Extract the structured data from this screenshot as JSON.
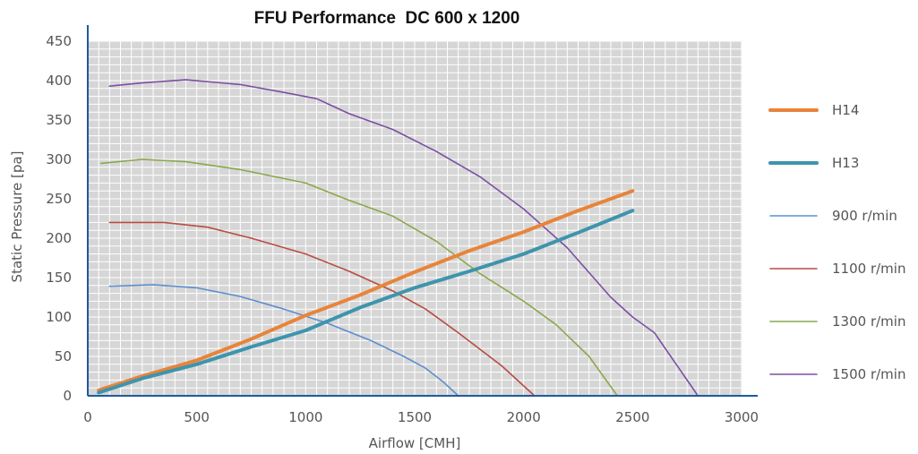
{
  "chart_data": {
    "type": "line",
    "title": "FFU Performance  DC 600 x 1200",
    "xlabel": "Airflow [CMH]",
    "ylabel": "Static Pressure [pa]",
    "xlim": [
      0,
      3000
    ],
    "ylim": [
      0,
      450
    ],
    "xticks": [
      "0",
      "500",
      "1000",
      "1500",
      "2000",
      "2500",
      "3000"
    ],
    "yticks": [
      "0",
      "50",
      "100",
      "150",
      "200",
      "250",
      "300",
      "350",
      "400",
      "450"
    ],
    "grid": true,
    "legend_position": "right",
    "series": [
      {
        "name": "H14",
        "color": "#e8843a",
        "width": "thick",
        "points": [
          [
            50,
            7
          ],
          [
            250,
            25
          ],
          [
            500,
            45
          ],
          [
            750,
            72
          ],
          [
            1000,
            102
          ],
          [
            1250,
            128
          ],
          [
            1500,
            157
          ],
          [
            1750,
            184
          ],
          [
            2000,
            208
          ],
          [
            2250,
            235
          ],
          [
            2500,
            260
          ]
        ]
      },
      {
        "name": "H13",
        "color": "#3e94ad",
        "width": "thick",
        "points": [
          [
            50,
            4
          ],
          [
            250,
            22
          ],
          [
            500,
            40
          ],
          [
            750,
            62
          ],
          [
            1000,
            83
          ],
          [
            1250,
            112
          ],
          [
            1500,
            137
          ],
          [
            1750,
            158
          ],
          [
            2000,
            180
          ],
          [
            2250,
            207
          ],
          [
            2500,
            235
          ]
        ]
      },
      {
        "name": "900 r/min",
        "color": "#5b8fcf",
        "width": "thin",
        "points": [
          [
            100,
            139
          ],
          [
            300,
            141
          ],
          [
            500,
            137
          ],
          [
            700,
            126
          ],
          [
            900,
            110
          ],
          [
            1100,
            92
          ],
          [
            1300,
            70
          ],
          [
            1450,
            50
          ],
          [
            1550,
            35
          ],
          [
            1630,
            18
          ],
          [
            1700,
            0
          ]
        ]
      },
      {
        "name": "1100 r/min",
        "color": "#b84d42",
        "width": "thin",
        "points": [
          [
            100,
            220
          ],
          [
            350,
            220
          ],
          [
            550,
            214
          ],
          [
            750,
            200
          ],
          [
            1000,
            180
          ],
          [
            1200,
            158
          ],
          [
            1400,
            133
          ],
          [
            1550,
            110
          ],
          [
            1700,
            80
          ],
          [
            1900,
            38
          ],
          [
            2050,
            0
          ]
        ]
      },
      {
        "name": "1300 r/min",
        "color": "#8aa84b",
        "width": "thin",
        "points": [
          [
            60,
            295
          ],
          [
            250,
            300
          ],
          [
            450,
            297
          ],
          [
            700,
            287
          ],
          [
            1000,
            270
          ],
          [
            1200,
            248
          ],
          [
            1400,
            228
          ],
          [
            1600,
            196
          ],
          [
            1800,
            155
          ],
          [
            2000,
            120
          ],
          [
            2150,
            90
          ],
          [
            2300,
            50
          ],
          [
            2430,
            0
          ]
        ]
      },
      {
        "name": "1500 r/min",
        "color": "#7b4fa3",
        "width": "thin",
        "points": [
          [
            100,
            393
          ],
          [
            250,
            397
          ],
          [
            450,
            401
          ],
          [
            700,
            395
          ],
          [
            900,
            385
          ],
          [
            1050,
            377
          ],
          [
            1200,
            358
          ],
          [
            1400,
            338
          ],
          [
            1600,
            310
          ],
          [
            1800,
            278
          ],
          [
            2000,
            237
          ],
          [
            2200,
            188
          ],
          [
            2400,
            125
          ],
          [
            2500,
            100
          ],
          [
            2600,
            80
          ],
          [
            2700,
            40
          ],
          [
            2800,
            0
          ]
        ]
      }
    ]
  }
}
